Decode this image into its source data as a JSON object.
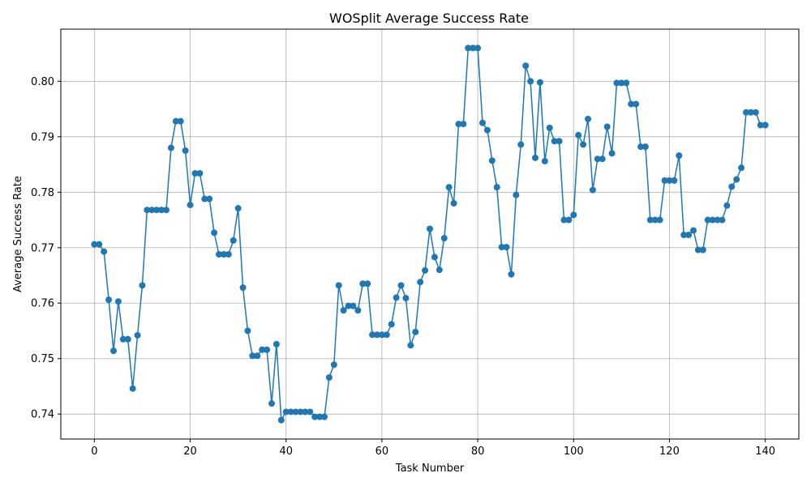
{
  "chart_data": {
    "type": "line",
    "title": "WOSplit Average Success Rate",
    "xlabel": "Task Number",
    "ylabel": "Average Success Rate",
    "xlim": [
      -7,
      147
    ],
    "ylim": [
      0.7355,
      0.8094
    ],
    "xticks": [
      0,
      20,
      40,
      60,
      80,
      100,
      120,
      140
    ],
    "yticks": [
      0.74,
      0.75,
      0.76,
      0.77,
      0.78,
      0.79,
      0.8
    ],
    "ytick_labels": [
      "0.74",
      "0.75",
      "0.76",
      "0.77",
      "0.78",
      "0.79",
      "0.80"
    ],
    "grid": true,
    "series": [
      {
        "color": "#1f77b4",
        "marker": "circle",
        "x": [
          0,
          1,
          2,
          3,
          4,
          5,
          6,
          7,
          8,
          9,
          10,
          11,
          12,
          13,
          14,
          15,
          16,
          17,
          18,
          19,
          20,
          21,
          22,
          23,
          24,
          25,
          26,
          27,
          28,
          29,
          30,
          31,
          32,
          33,
          34,
          35,
          36,
          37,
          38,
          39,
          40,
          41,
          42,
          43,
          44,
          45,
          46,
          47,
          48,
          49,
          50,
          51,
          52,
          53,
          54,
          55,
          56,
          57,
          58,
          59,
          60,
          61,
          62,
          63,
          64,
          65,
          66,
          67,
          68,
          69,
          70,
          71,
          72,
          73,
          74,
          75,
          76,
          77,
          78,
          79,
          80,
          81,
          82,
          83,
          84,
          85,
          86,
          87,
          88,
          89,
          90,
          91,
          92,
          93,
          94,
          95,
          96,
          97,
          98,
          99,
          100,
          101,
          102,
          103,
          104,
          105,
          106,
          107,
          108,
          109,
          110,
          111,
          112,
          113,
          114,
          115,
          116,
          117,
          118,
          119,
          120,
          121,
          122,
          123,
          124,
          125,
          126,
          127,
          128,
          129,
          130,
          131,
          132,
          133,
          134,
          135,
          136,
          137,
          138,
          139,
          140
        ],
        "y": [
          0.7706,
          0.7706,
          0.7693,
          0.7606,
          0.7514,
          0.7603,
          0.7535,
          0.7535,
          0.7446,
          0.7542,
          0.7632,
          0.7768,
          0.7768,
          0.7768,
          0.7768,
          0.7768,
          0.788,
          0.7928,
          0.7928,
          0.7875,
          0.7777,
          0.7834,
          0.7834,
          0.7788,
          0.7788,
          0.7727,
          0.7688,
          0.7688,
          0.7688,
          0.7713,
          0.7771,
          0.7628,
          0.755,
          0.7505,
          0.7505,
          0.7516,
          0.7516,
          0.7419,
          0.7526,
          0.7389,
          0.7404,
          0.7404,
          0.7404,
          0.7404,
          0.7404,
          0.7404,
          0.7395,
          0.7395,
          0.7395,
          0.7466,
          0.7489,
          0.7632,
          0.7587,
          0.7595,
          0.7595,
          0.7587,
          0.7635,
          0.7635,
          0.7543,
          0.7543,
          0.7543,
          0.7543,
          0.7562,
          0.761,
          0.7632,
          0.7609,
          0.7524,
          0.7548,
          0.7638,
          0.7659,
          0.7734,
          0.7683,
          0.766,
          0.7717,
          0.7809,
          0.778,
          0.7923,
          0.7923,
          0.806,
          0.806,
          0.806,
          0.7925,
          0.7912,
          0.7857,
          0.7809,
          0.7701,
          0.7701,
          0.7652,
          0.7795,
          0.7886,
          0.8028,
          0.8,
          0.7862,
          0.7998,
          0.7856,
          0.7916,
          0.7892,
          0.7892,
          0.775,
          0.775,
          0.7759,
          0.7903,
          0.7886,
          0.7932,
          0.7804,
          0.786,
          0.786,
          0.7918,
          0.787,
          0.7997,
          0.7997,
          0.7997,
          0.7959,
          0.7959,
          0.7882,
          0.7882,
          0.775,
          0.775,
          0.775,
          0.7821,
          0.7821,
          0.7821,
          0.7866,
          0.7723,
          0.7723,
          0.7731,
          0.7696,
          0.7696,
          0.775,
          0.775,
          0.775,
          0.775,
          0.7776,
          0.781,
          0.7823,
          0.7844,
          0.7944,
          0.7944,
          0.7944,
          0.7921,
          0.7921
        ]
      }
    ]
  }
}
